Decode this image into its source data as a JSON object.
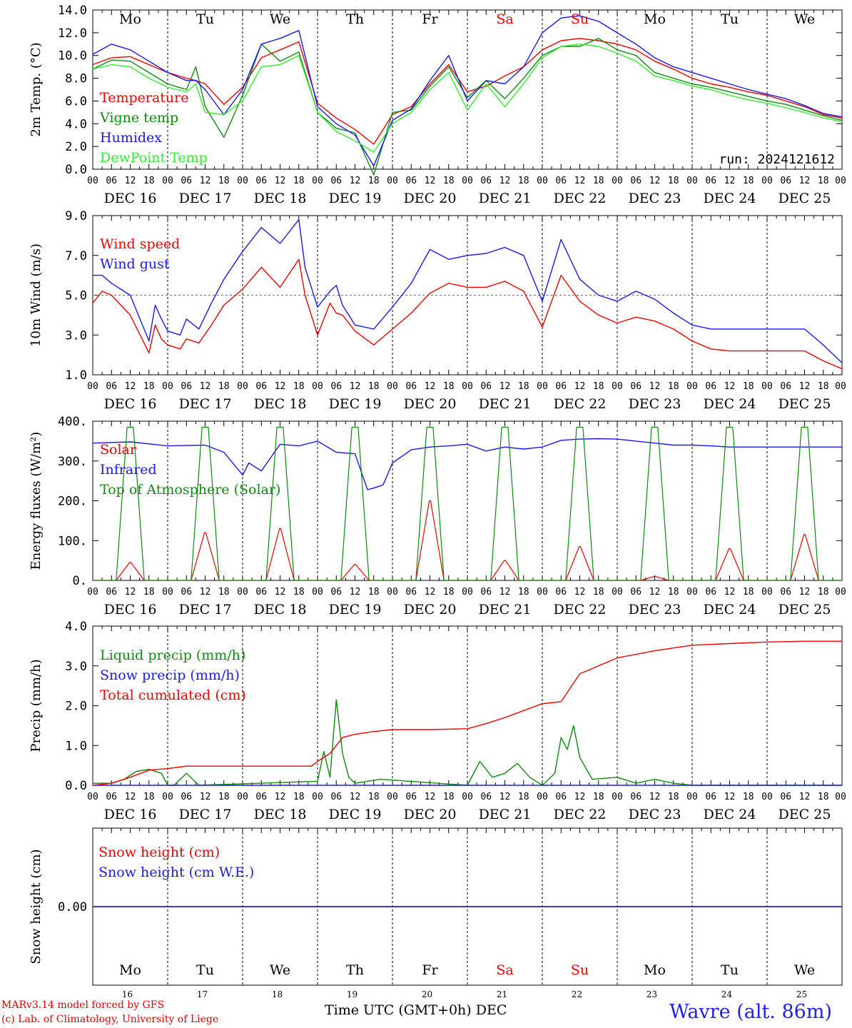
{
  "colors": {
    "red": "#ee0000",
    "green": "#118811",
    "blue": "#1a1aee",
    "lightgreen": "#33ee33",
    "black": "#000000"
  },
  "run_label": "run: 2024121612",
  "x_tick_labels": [
    "00",
    "06",
    "12",
    "18"
  ],
  "final_tick_label": "00",
  "weekdays": [
    {
      "label": "Mo",
      "color": "#000000"
    },
    {
      "label": "Tu",
      "color": "#000000"
    },
    {
      "label": "We",
      "color": "#000000"
    },
    {
      "label": "Th",
      "color": "#000000"
    },
    {
      "label": "Fr",
      "color": "#000000"
    },
    {
      "label": "Sa",
      "color": "#ee0000"
    },
    {
      "label": "Su",
      "color": "#ee0000"
    },
    {
      "label": "Mo",
      "color": "#000000"
    },
    {
      "label": "Tu",
      "color": "#000000"
    },
    {
      "label": "We",
      "color": "#000000"
    }
  ],
  "date_labels": [
    "DEC 16",
    "DEC 17",
    "DEC 18",
    "DEC 19",
    "DEC 20",
    "DEC 21",
    "DEC 22",
    "DEC 23",
    "DEC 24",
    "DEC 25"
  ],
  "day_numbers": [
    "16",
    "17",
    "18",
    "19",
    "20",
    "21",
    "22",
    "23",
    "24",
    "25"
  ],
  "footer": {
    "credit1": "MARv3.14 model forced by GFS",
    "credit2": "(c) Lab. of Climatology, University of Liege",
    "axis_title": "Time UTC (GMT+0h)",
    "month": "DEC",
    "station": "Wavre (alt. 86m)"
  },
  "chart_data": [
    {
      "id": "temp",
      "type": "line",
      "ylabel": "2m Temp. (°C)",
      "ylim": [
        0,
        14
      ],
      "yticks": [
        0,
        2,
        4,
        6,
        8,
        10,
        12,
        14
      ],
      "ytick_labels": [
        "0.0",
        "2.0",
        "4.0",
        "6.0",
        "8.0",
        "10.0",
        "12.0",
        "14.0"
      ],
      "x_unit": "hours since DEC 16 00 UTC",
      "xlim": [
        0,
        240
      ],
      "series": [
        {
          "name": "Temperature",
          "color": "#ee0000",
          "x": [
            0,
            6,
            12,
            18,
            24,
            30,
            33,
            36,
            42,
            48,
            54,
            60,
            66,
            72,
            78,
            84,
            90,
            96,
            102,
            108,
            114,
            120,
            126,
            132,
            138,
            144,
            150,
            156,
            162,
            168,
            174,
            180,
            186,
            192,
            198,
            204,
            210,
            216,
            222,
            228,
            234,
            240
          ],
          "y": [
            9.2,
            9.8,
            9.9,
            9.2,
            8.5,
            8.0,
            7.8,
            7.5,
            5.7,
            7.2,
            9.8,
            10.5,
            11.2,
            5.8,
            4.5,
            3.5,
            2.2,
            4.8,
            5.5,
            7.5,
            9.2,
            6.8,
            7.3,
            8.2,
            9.0,
            10.5,
            11.3,
            11.5,
            11.3,
            11.0,
            10.5,
            9.5,
            8.8,
            8.0,
            7.5,
            7.2,
            6.8,
            6.5,
            6.0,
            5.5,
            4.8,
            4.5
          ]
        },
        {
          "name": "Vigne temp",
          "color": "#118811",
          "x": [
            0,
            6,
            12,
            18,
            24,
            30,
            33,
            36,
            42,
            48,
            54,
            60,
            66,
            72,
            78,
            84,
            90,
            96,
            102,
            108,
            114,
            120,
            126,
            132,
            138,
            144,
            150,
            156,
            162,
            168,
            174,
            180,
            186,
            192,
            198,
            204,
            210,
            216,
            222,
            228,
            234,
            240
          ],
          "y": [
            8.8,
            9.6,
            9.5,
            8.5,
            7.5,
            7.0,
            9.0,
            5.5,
            2.8,
            6.5,
            11.0,
            9.5,
            10.3,
            5.0,
            3.6,
            3.2,
            -0.5,
            5.0,
            5.2,
            7.3,
            9.0,
            6.3,
            7.8,
            6.2,
            8.0,
            10.0,
            10.8,
            10.8,
            11.5,
            10.5,
            10.0,
            8.5,
            8.0,
            7.5,
            7.2,
            6.8,
            6.4,
            6.0,
            5.7,
            5.2,
            4.7,
            4.3
          ]
        },
        {
          "name": "Humidex",
          "color": "#1a1aee",
          "x": [
            0,
            6,
            12,
            18,
            24,
            30,
            33,
            36,
            42,
            48,
            54,
            60,
            66,
            72,
            78,
            84,
            90,
            96,
            102,
            108,
            114,
            120,
            126,
            132,
            138,
            144,
            150,
            156,
            162,
            168,
            174,
            180,
            186,
            192,
            198,
            204,
            210,
            216,
            222,
            228,
            234,
            240
          ],
          "y": [
            10.1,
            11.0,
            10.5,
            9.5,
            8.5,
            7.8,
            7.8,
            7.0,
            4.8,
            7.0,
            11.0,
            11.5,
            12.2,
            5.5,
            4.0,
            3.0,
            0.3,
            4.3,
            5.3,
            7.8,
            10.0,
            6.0,
            7.8,
            7.5,
            9.0,
            12.0,
            13.3,
            13.5,
            13.0,
            12.0,
            11.0,
            9.8,
            9.0,
            8.5,
            8.0,
            7.5,
            7.0,
            6.6,
            6.2,
            5.6,
            4.9,
            4.6
          ]
        },
        {
          "name": "DewPoint Temp",
          "color": "#33ee33",
          "x": [
            0,
            6,
            12,
            18,
            24,
            30,
            33,
            36,
            42,
            48,
            54,
            60,
            66,
            72,
            78,
            84,
            90,
            96,
            102,
            108,
            114,
            120,
            126,
            132,
            138,
            144,
            150,
            156,
            162,
            168,
            174,
            180,
            186,
            192,
            198,
            204,
            210,
            216,
            222,
            228,
            234,
            240
          ],
          "y": [
            8.8,
            9.2,
            9.0,
            8.0,
            7.2,
            6.8,
            7.5,
            5.0,
            4.8,
            6.0,
            9.0,
            9.2,
            10.0,
            5.0,
            3.3,
            2.5,
            1.5,
            4.0,
            5.0,
            7.0,
            8.5,
            5.2,
            7.5,
            5.5,
            7.5,
            9.8,
            10.8,
            11.0,
            10.8,
            10.2,
            9.5,
            8.2,
            7.8,
            7.3,
            7.0,
            6.5,
            6.1,
            5.8,
            5.4,
            5.0,
            4.5,
            4.2
          ]
        }
      ]
    },
    {
      "id": "wind",
      "type": "line",
      "ylabel": "10m Wind (m/s)",
      "ylim": [
        1,
        9
      ],
      "yticks": [
        1,
        3,
        5,
        7,
        9
      ],
      "ytick_labels": [
        "1.0",
        "3.0",
        "5.0",
        "7.0",
        "9.0"
      ],
      "dashed_reference_y": 5,
      "x_unit": "hours since DEC 16 00 UTC",
      "xlim": [
        0,
        240
      ],
      "series": [
        {
          "name": "Wind speed",
          "color": "#ee0000",
          "x": [
            0,
            3,
            6,
            12,
            18,
            20,
            22,
            24,
            28,
            30,
            34,
            38,
            42,
            48,
            54,
            60,
            66,
            68,
            72,
            76,
            78,
            80,
            84,
            90,
            96,
            102,
            108,
            114,
            120,
            126,
            132,
            138,
            144,
            150,
            156,
            162,
            168,
            174,
            180,
            186,
            192,
            198,
            204,
            210,
            216,
            222,
            228,
            234,
            240
          ],
          "y": [
            4.6,
            5.2,
            5.0,
            4.0,
            2.1,
            3.5,
            2.8,
            2.5,
            2.3,
            2.8,
            2.6,
            3.5,
            4.5,
            5.3,
            6.4,
            5.4,
            6.8,
            5.0,
            3.0,
            4.6,
            4.1,
            4.0,
            3.2,
            2.5,
            3.3,
            4.1,
            5.1,
            5.6,
            5.4,
            5.4,
            5.7,
            5.2,
            3.4,
            6.0,
            4.7,
            4.0,
            3.6,
            3.9,
            3.7,
            3.3,
            2.7,
            2.3,
            2.2,
            2.2,
            2.2,
            2.2,
            2.2,
            1.7,
            1.3
          ]
        },
        {
          "name": "Wind gust",
          "color": "#1a1aee",
          "x": [
            0,
            3,
            6,
            12,
            18,
            20,
            22,
            24,
            28,
            30,
            34,
            38,
            42,
            48,
            54,
            60,
            66,
            68,
            72,
            76,
            78,
            80,
            84,
            90,
            96,
            102,
            108,
            114,
            120,
            126,
            132,
            138,
            144,
            150,
            156,
            162,
            168,
            174,
            180,
            186,
            192,
            198,
            204,
            210,
            216,
            222,
            228,
            234,
            240
          ],
          "y": [
            6.0,
            6.0,
            5.6,
            5.0,
            2.7,
            4.5,
            3.8,
            3.2,
            3.0,
            3.8,
            3.3,
            4.6,
            5.8,
            7.2,
            8.4,
            7.6,
            8.8,
            6.4,
            4.4,
            5.2,
            5.5,
            4.5,
            3.5,
            3.3,
            4.4,
            5.6,
            7.3,
            6.8,
            7.0,
            7.1,
            7.4,
            7.0,
            4.7,
            7.8,
            5.8,
            5.0,
            4.7,
            5.2,
            4.8,
            4.1,
            3.5,
            3.3,
            3.3,
            3.3,
            3.3,
            3.3,
            3.3,
            2.5,
            1.6
          ]
        }
      ]
    },
    {
      "id": "energy",
      "type": "line",
      "ylabel": "Energy fluxes (W/m²)",
      "ylim": [
        0,
        400
      ],
      "yticks": [
        0,
        100,
        200,
        300,
        400
      ],
      "ytick_labels": [
        "0.",
        "100.",
        "200.",
        "300.",
        "400."
      ],
      "x_unit": "hours since DEC 16 00 UTC",
      "xlim": [
        0,
        240
      ],
      "series": [
        {
          "name": "Solar",
          "color": "#ee0000",
          "day_peaks": [
            45,
            120,
            130,
            40,
            200,
            50,
            85,
            10,
            80,
            115
          ]
        },
        {
          "name": "Infrared",
          "color": "#1a1aee",
          "x": [
            0,
            12,
            24,
            36,
            42,
            48,
            50,
            54,
            60,
            66,
            72,
            78,
            84,
            88,
            90,
            93,
            96,
            102,
            108,
            114,
            120,
            126,
            132,
            138,
            144,
            150,
            156,
            162,
            168,
            174,
            180,
            186,
            192,
            198,
            204,
            210,
            216,
            222,
            228,
            234,
            240
          ],
          "y": [
            345,
            348,
            338,
            340,
            322,
            265,
            295,
            275,
            342,
            338,
            350,
            322,
            318,
            228,
            232,
            240,
            295,
            328,
            335,
            338,
            342,
            325,
            335,
            330,
            335,
            352,
            355,
            356,
            355,
            350,
            345,
            340,
            340,
            338,
            335,
            335,
            335,
            335,
            335,
            335,
            335
          ]
        },
        {
          "name": "Top of Atmosphere (Solar)",
          "color": "#118811",
          "day_peaks": [
            385,
            385,
            385,
            385,
            385,
            385,
            385,
            385,
            385,
            385
          ]
        }
      ]
    },
    {
      "id": "precip",
      "type": "line",
      "ylabel": "Precip (mm/h)",
      "ylim": [
        0,
        4
      ],
      "yticks": [
        0,
        1,
        2,
        3,
        4
      ],
      "ytick_labels": [
        "0.0",
        "1.0",
        "2.0",
        "3.0",
        "4.0"
      ],
      "x_unit": "hours since DEC 16 00 UTC",
      "xlim": [
        0,
        240
      ],
      "series": [
        {
          "name": "Liquid precip (mm/h)",
          "color": "#118811",
          "x": [
            0,
            6,
            10,
            14,
            18,
            22,
            24,
            26,
            30,
            34,
            72,
            74,
            76,
            78,
            80,
            82,
            84,
            88,
            92,
            120,
            124,
            128,
            132,
            136,
            140,
            144,
            148,
            150,
            152,
            154,
            156,
            160,
            168,
            174,
            180,
            186,
            192,
            198,
            240
          ],
          "y": [
            0.05,
            0.05,
            0.15,
            0.35,
            0.4,
            0.3,
            0.0,
            0.0,
            0.3,
            0.0,
            0.1,
            0.85,
            0.2,
            2.15,
            0.8,
            0.2,
            0.05,
            0.1,
            0.15,
            0.0,
            0.6,
            0.2,
            0.3,
            0.55,
            0.2,
            0.0,
            0.3,
            1.2,
            0.9,
            1.5,
            0.7,
            0.15,
            0.2,
            0.05,
            0.15,
            0.05,
            0.0,
            0.0,
            0.0
          ]
        },
        {
          "name": "Snow precip (mm/h)",
          "color": "#1a1aee",
          "x": [
            0,
            240
          ],
          "y": [
            0,
            0
          ]
        },
        {
          "name": "Total cumulated (cm)",
          "color": "#ee0000",
          "x": [
            0,
            6,
            12,
            18,
            24,
            30,
            48,
            60,
            70,
            72,
            76,
            80,
            84,
            90,
            96,
            108,
            120,
            126,
            132,
            144,
            150,
            156,
            168,
            180,
            192,
            204,
            216,
            228,
            240
          ],
          "y": [
            0.0,
            0.05,
            0.2,
            0.38,
            0.42,
            0.48,
            0.48,
            0.48,
            0.48,
            0.6,
            0.8,
            1.2,
            1.28,
            1.35,
            1.4,
            1.4,
            1.42,
            1.55,
            1.7,
            2.05,
            2.1,
            2.8,
            3.2,
            3.38,
            3.52,
            3.56,
            3.6,
            3.62,
            3.62
          ]
        }
      ]
    },
    {
      "id": "snow",
      "type": "line",
      "ylabel": "Snow height (cm)",
      "yticks": [
        0
      ],
      "ytick_labels": [
        "0.00"
      ],
      "x_unit": "hours since DEC 16 00 UTC",
      "xlim": [
        0,
        240
      ],
      "series": [
        {
          "name": "Snow height (cm)",
          "color": "#ee0000",
          "x": [
            0,
            240
          ],
          "y": [
            0,
            0
          ]
        },
        {
          "name": "Snow height (cm W.E.)",
          "color": "#1a1aee",
          "x": [
            0,
            240
          ],
          "y": [
            0,
            0
          ]
        }
      ]
    }
  ]
}
